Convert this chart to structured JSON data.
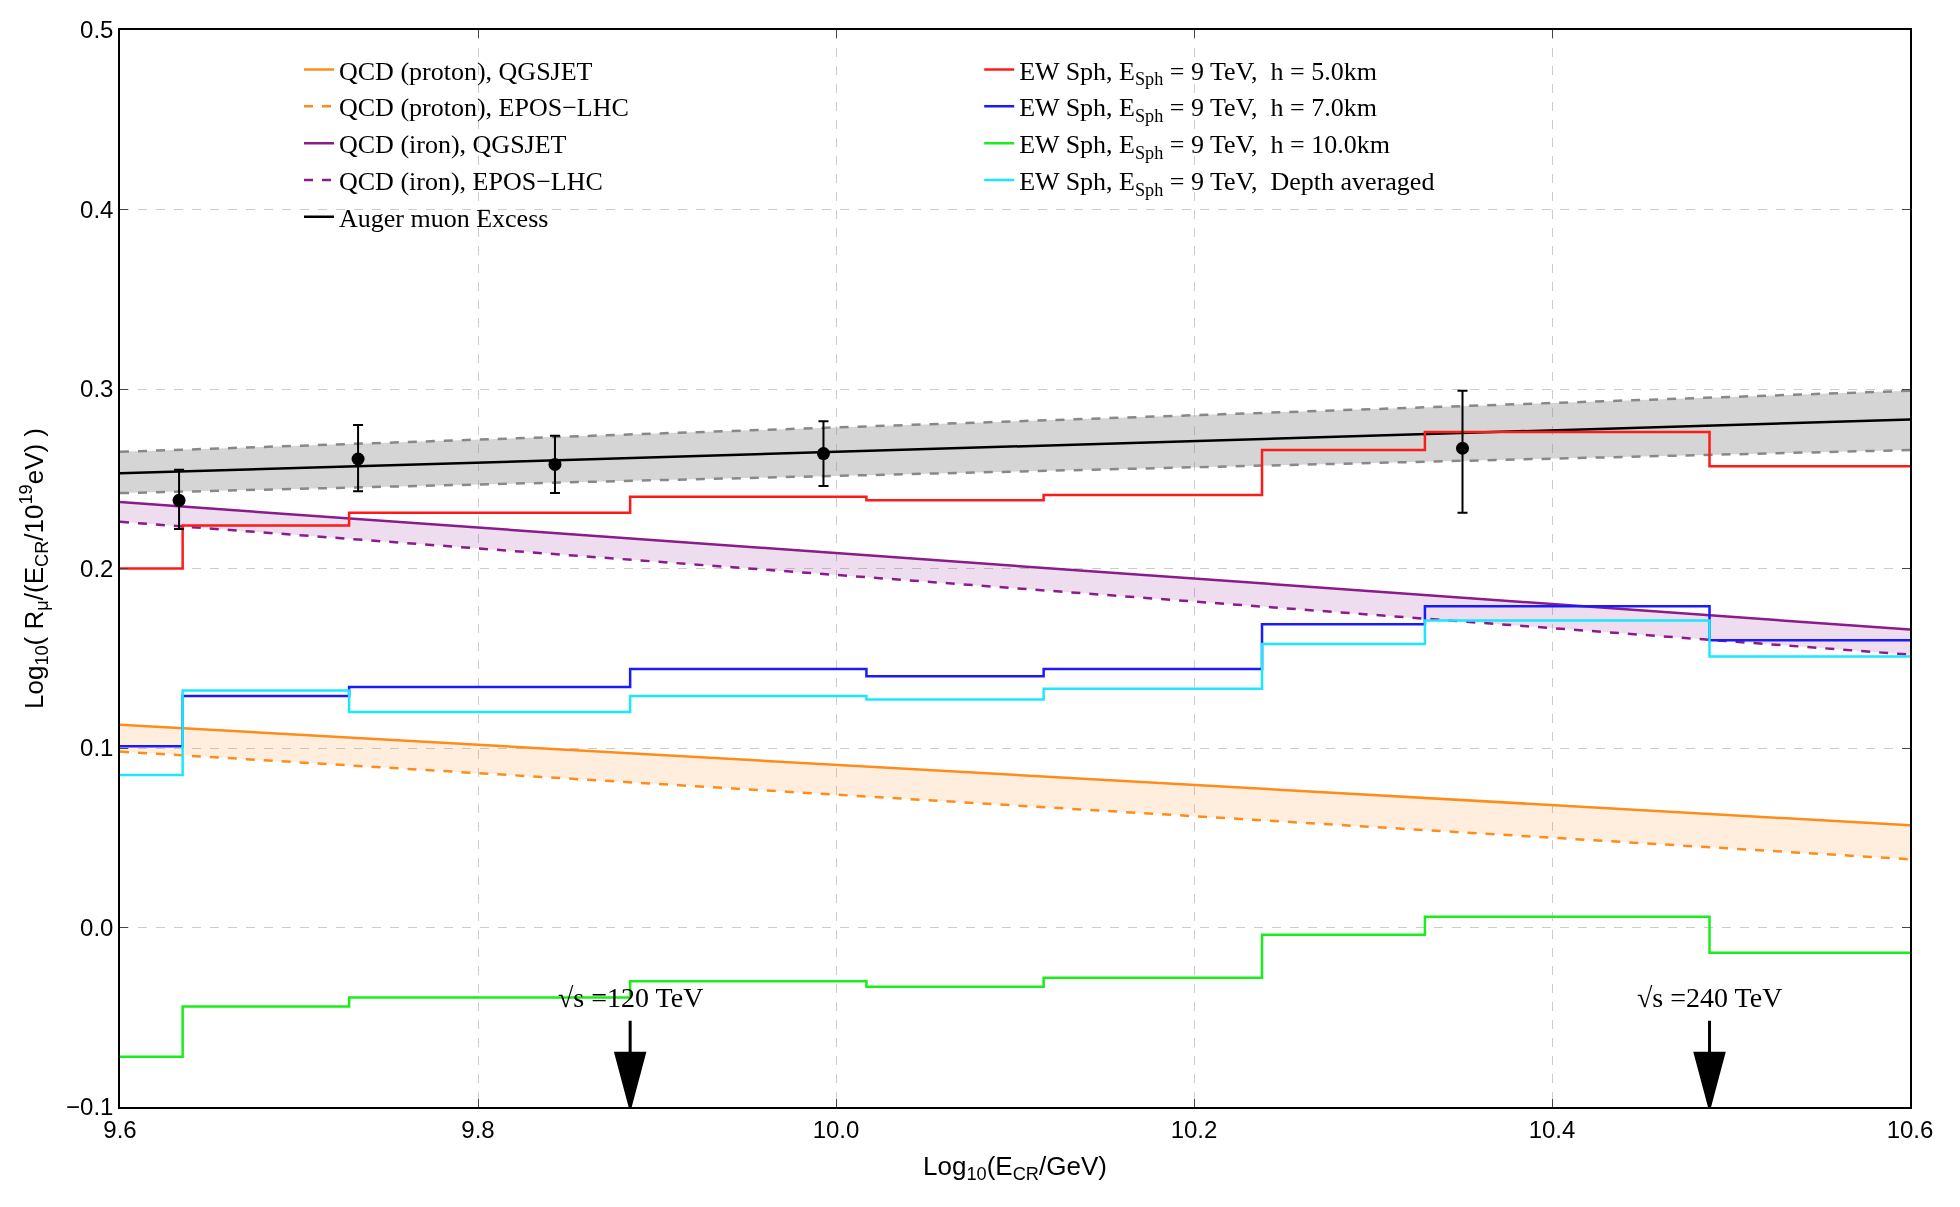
{
  "chart_data": {
    "type": "line",
    "xlabel": "Log$_{10}$(E$_{CR}$/GeV)",
    "ylabel": "Log$_{10}$( R$_{μ}$/(E$_{CR}$/10$^{19}$eV) )",
    "xlim": [
      9.6,
      10.6
    ],
    "xticks": [
      9.6,
      9.8,
      {
        "value": 10.0,
        "label": "10.0"
      },
      10.2,
      10.4,
      10.6
    ],
    "ylim": [
      -0.1,
      0.5
    ],
    "yticks": [
      {
        "value": -0.1,
        "label": "−0.1"
      },
      {
        "value": 0.0,
        "label": "0.0"
      },
      0.1,
      0.2,
      0.3,
      0.4,
      0.5
    ],
    "grid": true,
    "legend": "top left",
    "line_style": "solid",
    "marker": "none",
    "series": [
      {
        "name": "QCD (proton), QGSJET",
        "color": "#ff8c1a",
        "type": "line",
        "x": [
          9.6,
          10.6
        ],
        "values": [
          0.113,
          0.057
        ],
        "lower": [
          0.098,
          0.038
        ],
        "upper": [
          0.113,
          0.057
        ]
      },
      {
        "name": "QCD (proton), EPOS−LHC",
        "color": "#ff8c1a",
        "type": "line",
        "line_style": "dashed",
        "x": [
          9.6,
          10.6
        ],
        "values": [
          0.098,
          0.038
        ]
      },
      {
        "name": "QCD (iron), QGSJET",
        "color": "#8b1a8b",
        "type": "line",
        "x": [
          9.6,
          10.6
        ],
        "values": [
          0.237,
          0.166
        ],
        "lower": [
          0.226,
          0.152
        ],
        "upper": [
          0.237,
          0.166
        ]
      },
      {
        "name": "QCD (iron), EPOS−LHC",
        "color": "#8b1a8b",
        "type": "line",
        "line_style": "dashed",
        "x": [
          9.6,
          10.6
        ],
        "values": [
          0.226,
          0.152
        ]
      },
      {
        "name": "Auger muon Excess",
        "color": "#000000",
        "x": [
          9.6,
          10.6
        ],
        "values": [
          0.253,
          0.283
        ],
        "lower": [
          0.242,
          0.266
        ],
        "upper": [
          0.265,
          0.299
        ]
      },
      {
        "color": "#888888",
        "line_style": "dashed",
        "x": [
          9.6,
          10.6
        ],
        "values": [
          0.242,
          0.266
        ]
      },
      {
        "color": "#888888",
        "line_style": "dashed",
        "x": [
          9.6,
          10.6
        ],
        "values": [
          0.265,
          0.299
        ]
      },
      {
        "name": "EW Sph, E$_{Sph}$ = 9 TeV,  h = 5.0km",
        "color": "#ff1a1a",
        "type": "step",
        "x": [
          9.6,
          9.635,
          9.728,
          9.885,
          10.017,
          10.116,
          10.238,
          10.329,
          10.488,
          10.6
        ],
        "values": [
          0.2,
          0.224,
          0.231,
          0.24,
          0.238,
          0.241,
          0.266,
          0.276,
          0.257,
          0.257
        ]
      },
      {
        "name": "EW Sph, E$_{Sph}$ = 9 TeV,  h = 7.0km",
        "color": "#1a1aff",
        "type": "step",
        "x": [
          9.6,
          9.635,
          9.728,
          9.885,
          10.017,
          10.116,
          10.238,
          10.329,
          10.488,
          10.6
        ],
        "values": [
          0.101,
          0.129,
          0.134,
          0.144,
          0.14,
          0.144,
          0.169,
          0.179,
          0.16,
          0.16
        ]
      },
      {
        "name": "EW Sph, E$_{Sph}$ = 9 TeV,  h = 10.0km",
        "color": "#1aee1a",
        "type": "step",
        "x": [
          9.6,
          9.635,
          9.728,
          9.885,
          10.017,
          10.116,
          10.238,
          10.329,
          10.488,
          10.6
        ],
        "values": [
          -0.072,
          -0.044,
          -0.039,
          -0.03,
          -0.033,
          -0.028,
          -0.004,
          0.006,
          -0.014,
          -0.014
        ]
      },
      {
        "name": "EW Sph, E$_{Sph}$ = 9 TeV,  Depth averaged",
        "color": "#1ae8ff",
        "type": "step",
        "x": [
          9.6,
          9.635,
          9.728,
          9.885,
          10.017,
          10.116,
          10.238,
          10.329,
          10.488,
          10.6
        ],
        "values": [
          0.085,
          0.132,
          0.12,
          0.129,
          0.127,
          0.133,
          0.158,
          0.171,
          0.151,
          0.151
        ]
      },
      {
        "color": "#000000",
        "type": "scatter",
        "marker": "circle",
        "x": [
          9.633,
          9.733,
          9.843,
          9.993,
          10.35
        ],
        "values": [
          0.238,
          0.261,
          0.258,
          0.264,
          0.267
        ],
        "errors": [
          [
            0.222,
            0.255
          ],
          [
            0.243,
            0.28
          ],
          [
            0.242,
            0.274
          ],
          [
            0.246,
            0.282
          ],
          [
            0.231,
            0.299
          ]
        ]
      }
    ],
    "annotations": [
      {
        "text": "√s =120 TeV",
        "x": 9.885
      },
      {
        "text": "√s =240 TeV",
        "x": 10.488
      }
    ]
  }
}
